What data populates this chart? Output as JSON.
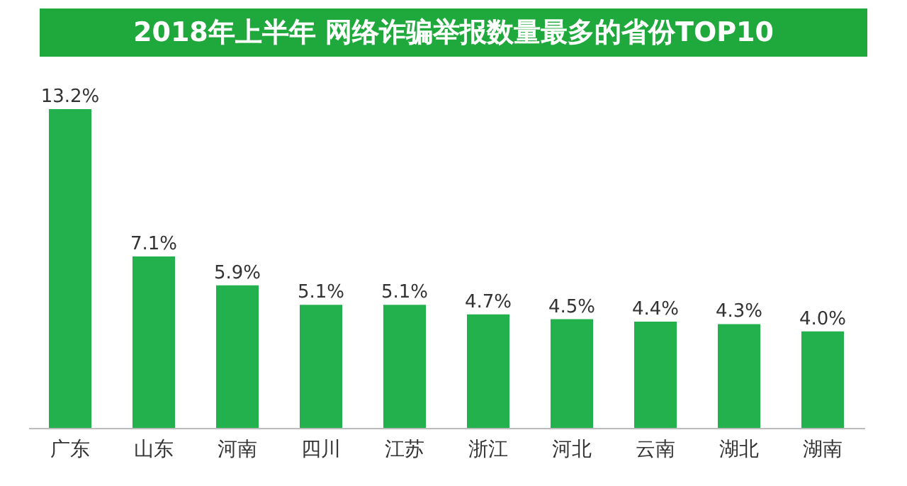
{
  "chart_data": {
    "type": "bar",
    "title": "2018年上半年 网络诈骗举报数量最多的省份TOP10",
    "categories": [
      "广东",
      "山东",
      "河南",
      "四川",
      "江苏",
      "浙江",
      "河北",
      "云南",
      "湖北",
      "湖南"
    ],
    "values": [
      13.2,
      7.1,
      5.9,
      5.1,
      5.1,
      4.7,
      4.5,
      4.4,
      4.3,
      4.0
    ],
    "value_labels": [
      "13.2%",
      "7.1%",
      "5.9%",
      "5.1%",
      "5.1%",
      "4.7%",
      "4.5%",
      "4.4%",
      "4.3%",
      "4.0%"
    ],
    "color": "#22b14c"
  }
}
